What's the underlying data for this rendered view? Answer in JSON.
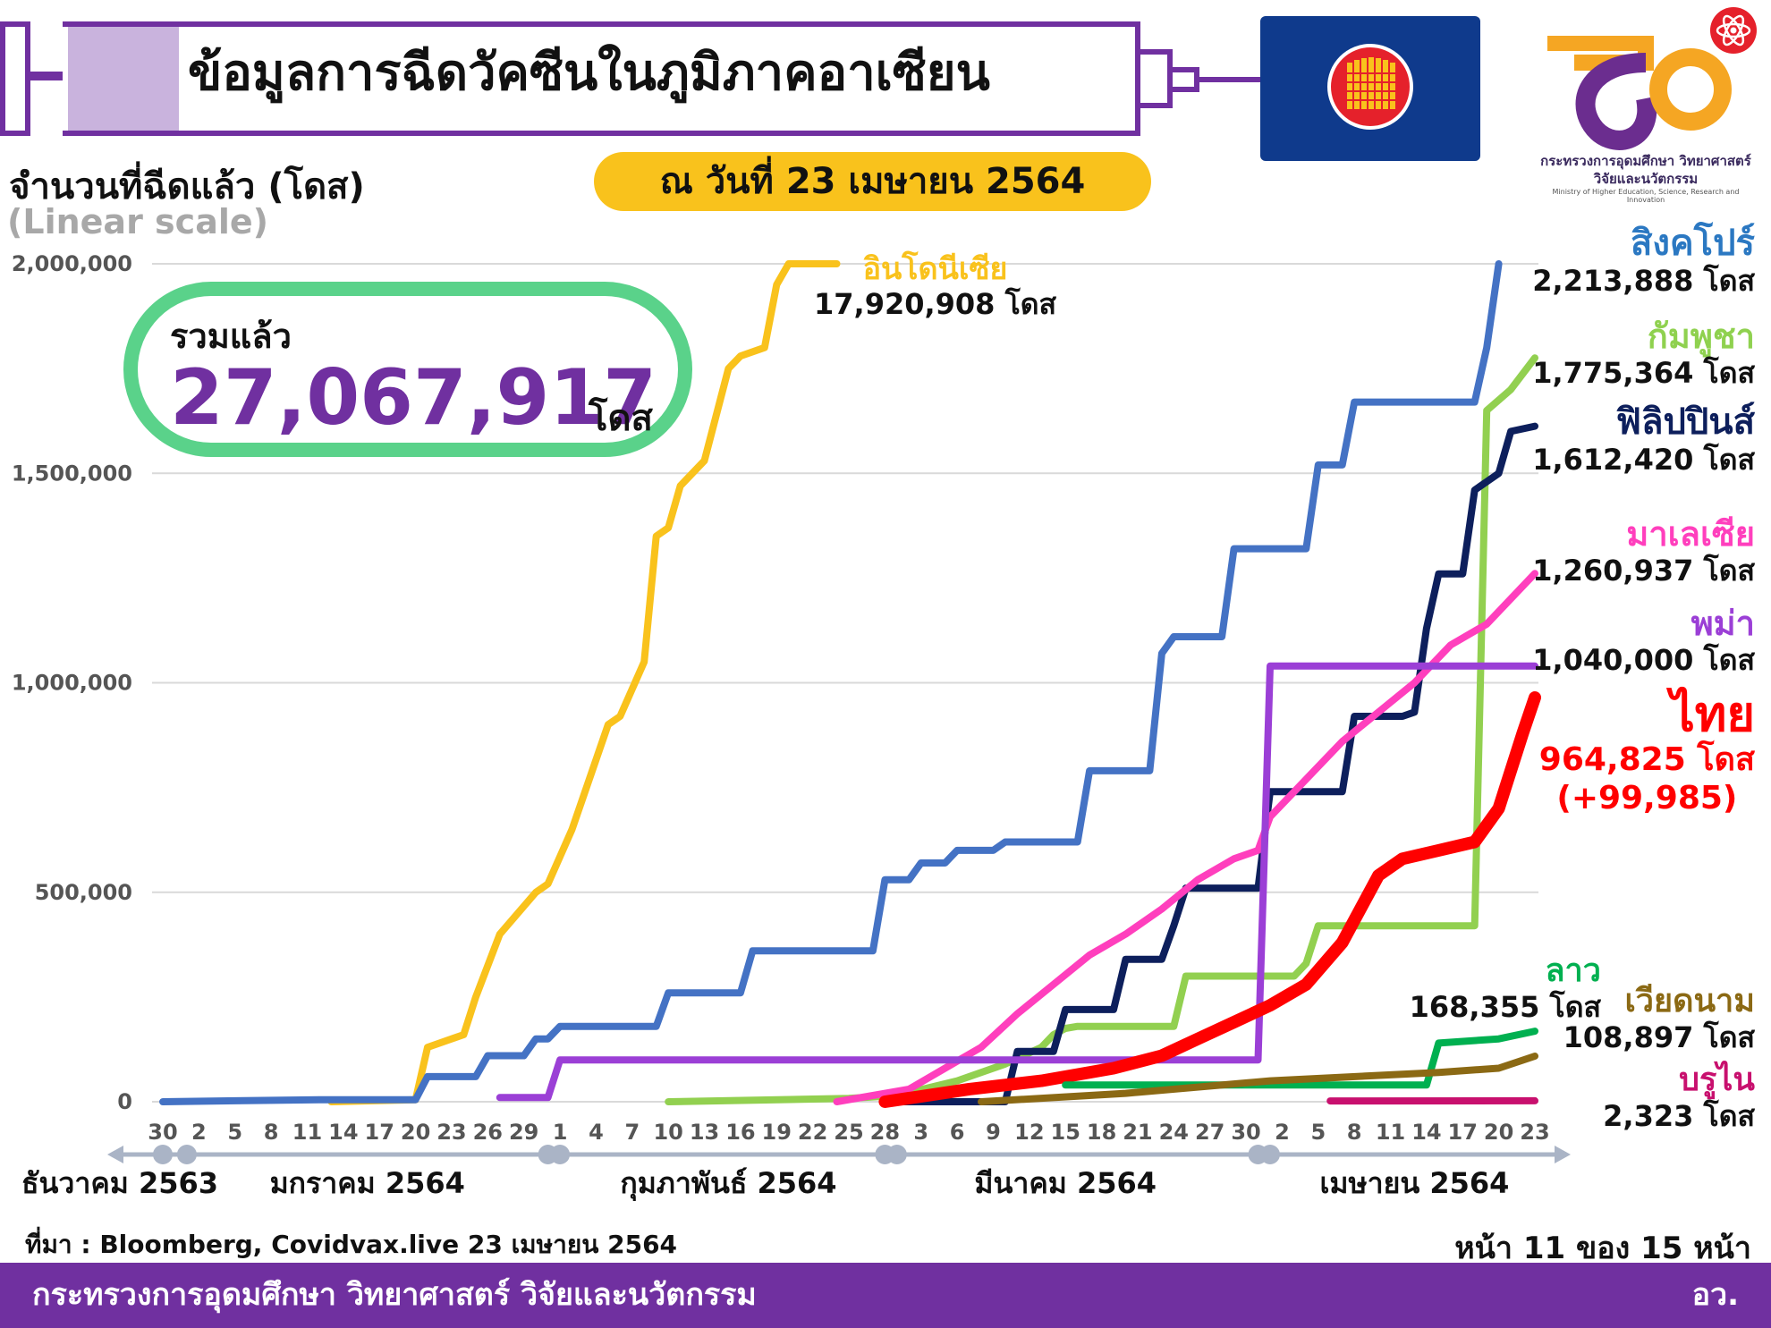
{
  "header": {
    "title": "ข้อมูลการฉีดวัคซีนในภูมิภาคอาเซียน",
    "date": "ณ วันที่ 23 เมษายน 2564"
  },
  "logo": {
    "name_th": "กระทรวงการอุดมศึกษา วิทยาศาสตร์ วิจัยและนวัตกรรม",
    "name_en": "Ministry of Higher Education, Science, Research and Innovation"
  },
  "total": {
    "label": "รวมแล้ว",
    "value": "27,067,917",
    "unit": "โดส"
  },
  "source": "ที่มา : Bloomberg, Covidvax.live 23 เมษายน 2564",
  "page": "หน้า 11 ของ 15 หน้า",
  "footer": {
    "ministry": "กระทรวงการอุดมศึกษา วิทยาศาสตร์ วิจัยและนวัตกรรม",
    "abbr": "อว."
  },
  "chart_data": {
    "type": "line",
    "ylabel": "จำนวนที่ฉีดแล้ว (โดส)",
    "yscale_note": "(Linear scale)",
    "ylim": [
      0,
      2000000
    ],
    "yticks": [
      0,
      500000,
      1000000,
      1500000,
      2000000
    ],
    "ytick_labels": [
      "0",
      "500,000",
      "1,000,000",
      "1,500,000",
      "2,000,000"
    ],
    "x_unit": "date",
    "xlim": [
      "2020-12-30",
      "2021-04-23"
    ],
    "x_ticks": [
      "2020-12-30",
      "2021-01-02",
      "2021-01-05",
      "2021-01-08",
      "2021-01-11",
      "2021-01-14",
      "2021-01-17",
      "2021-01-20",
      "2021-01-23",
      "2021-01-26",
      "2021-01-29",
      "2021-02-01",
      "2021-02-04",
      "2021-02-07",
      "2021-02-10",
      "2021-02-13",
      "2021-02-16",
      "2021-02-19",
      "2021-02-22",
      "2021-02-25",
      "2021-02-28",
      "2021-03-03",
      "2021-03-06",
      "2021-03-09",
      "2021-03-12",
      "2021-03-15",
      "2021-03-18",
      "2021-03-21",
      "2021-03-24",
      "2021-03-27",
      "2021-03-30",
      "2021-04-02",
      "2021-04-05",
      "2021-04-08",
      "2021-04-11",
      "2021-04-14",
      "2021-04-17",
      "2021-04-20",
      "2021-04-23"
    ],
    "x_tick_labels": [
      "30",
      "2",
      "5",
      "8",
      "11",
      "14",
      "17",
      "20",
      "23",
      "26",
      "29",
      "1",
      "4",
      "7",
      "10",
      "13",
      "16",
      "19",
      "22",
      "25",
      "28",
      "3",
      "6",
      "9",
      "12",
      "15",
      "18",
      "21",
      "24",
      "27",
      "30",
      "2",
      "5",
      "8",
      "11",
      "14",
      "17",
      "20",
      "23"
    ],
    "months": [
      "ธันวาคม 2563",
      "มกราคม 2564",
      "กุมภาพันธ์ 2564",
      "มีนาคม 2564",
      "เมษายน 2564"
    ],
    "grid": true,
    "series": [
      {
        "name": "อินโดนีเซีย",
        "final_label": "17,920,908 โดส",
        "color": "#f9c21c",
        "x": [
          "2021-01-13",
          "2021-01-20",
          "2021-01-21",
          "2021-01-24",
          "2021-01-25",
          "2021-01-27",
          "2021-01-30",
          "2021-01-31",
          "2021-02-02",
          "2021-02-05",
          "2021-02-06",
          "2021-02-08",
          "2021-02-09",
          "2021-02-10",
          "2021-02-11",
          "2021-02-13",
          "2021-02-15",
          "2021-02-16",
          "2021-02-18",
          "2021-02-19",
          "2021-02-20",
          "2021-02-21",
          "2021-02-23",
          "2021-02-24"
        ],
        "y": [
          0,
          5000,
          130000,
          160000,
          250000,
          400000,
          500000,
          520000,
          650000,
          900000,
          920000,
          1050000,
          1350000,
          1370000,
          1470000,
          1530000,
          1750000,
          1780000,
          1800000,
          1950000,
          2000000,
          2000000,
          2000000,
          2000000
        ]
      },
      {
        "name": "สิงคโปร์",
        "final_label": "2,213,888 โดส",
        "color": "#4472c4",
        "x": [
          "2020-12-30",
          "2021-01-12",
          "2021-01-20",
          "2021-01-21",
          "2021-01-25",
          "2021-01-26",
          "2021-01-29",
          "2021-01-30",
          "2021-01-31",
          "2021-02-01",
          "2021-02-02",
          "2021-02-09",
          "2021-02-10",
          "2021-02-16",
          "2021-02-17",
          "2021-02-27",
          "2021-02-28",
          "2021-03-02",
          "2021-03-03",
          "2021-03-05",
          "2021-03-06",
          "2021-03-09",
          "2021-03-10",
          "2021-03-16",
          "2021-03-17",
          "2021-03-21",
          "2021-03-22",
          "2021-03-23",
          "2021-03-24",
          "2021-03-28",
          "2021-03-29",
          "2021-04-04",
          "2021-04-05",
          "2021-04-07",
          "2021-04-08",
          "2021-04-18",
          "2021-04-19",
          "2021-04-20"
        ],
        "y": [
          0,
          5000,
          5000,
          60000,
          60000,
          110000,
          110000,
          150000,
          150000,
          180000,
          180000,
          180000,
          260000,
          260000,
          360000,
          360000,
          530000,
          530000,
          570000,
          570000,
          600000,
          600000,
          620000,
          620000,
          790000,
          790000,
          790000,
          1070000,
          1110000,
          1110000,
          1320000,
          1320000,
          1520000,
          1520000,
          1670000,
          1670000,
          1800000,
          2000000
        ]
      },
      {
        "name": "กัมพูชา",
        "final_label": "1,775,364 โดส",
        "color": "#92d050",
        "x": [
          "2021-02-10",
          "2021-02-25",
          "2021-03-01",
          "2021-03-06",
          "2021-03-10",
          "2021-03-13",
          "2021-03-14",
          "2021-03-15",
          "2021-03-16",
          "2021-03-24",
          "2021-03-25",
          "2021-04-03",
          "2021-04-04",
          "2021-04-05",
          "2021-04-06",
          "2021-04-17",
          "2021-04-18",
          "2021-04-19",
          "2021-04-21",
          "2021-04-23"
        ],
        "y": [
          0,
          8000,
          15000,
          50000,
          90000,
          130000,
          160000,
          175000,
          180000,
          180000,
          300000,
          300000,
          330000,
          420000,
          420000,
          420000,
          420000,
          1650000,
          1700000,
          1775364
        ]
      },
      {
        "name": "ฟิลิปปินส์",
        "final_label": "1,612,420 โดส",
        "color": "#0d1f5c",
        "x": [
          "2021-03-01",
          "2021-03-10",
          "2021-03-11",
          "2021-03-14",
          "2021-03-15",
          "2021-03-19",
          "2021-03-20",
          "2021-03-23",
          "2021-03-24",
          "2021-03-25",
          "2021-03-26",
          "2021-03-31",
          "2021-04-01",
          "2021-04-07",
          "2021-04-08",
          "2021-04-12",
          "2021-04-13",
          "2021-04-14",
          "2021-04-15",
          "2021-04-17",
          "2021-04-18",
          "2021-04-19",
          "2021-04-20",
          "2021-04-21",
          "2021-04-23"
        ],
        "y": [
          0,
          0,
          120000,
          120000,
          220000,
          220000,
          340000,
          340000,
          420000,
          510000,
          510000,
          510000,
          740000,
          740000,
          920000,
          920000,
          930000,
          1130000,
          1260000,
          1260000,
          1460000,
          1480000,
          1500000,
          1600000,
          1612420
        ]
      },
      {
        "name": "มาเลเซีย",
        "final_label": "1,260,937 โดส",
        "color": "#ff3fbd",
        "x": [
          "2021-02-24",
          "2021-03-02",
          "2021-03-05",
          "2021-03-08",
          "2021-03-11",
          "2021-03-14",
          "2021-03-17",
          "2021-03-20",
          "2021-03-23",
          "2021-03-26",
          "2021-03-29",
          "2021-03-31",
          "2021-04-01",
          "2021-04-04",
          "2021-04-07",
          "2021-04-10",
          "2021-04-13",
          "2021-04-16",
          "2021-04-19",
          "2021-04-23"
        ],
        "y": [
          0,
          30000,
          80000,
          130000,
          210000,
          280000,
          350000,
          400000,
          460000,
          530000,
          580000,
          600000,
          680000,
          770000,
          860000,
          930000,
          1000000,
          1090000,
          1140000,
          1260937
        ]
      },
      {
        "name": "พม่า",
        "final_label": "1,040,000 โดส",
        "color": "#9b3fd6",
        "x": [
          "2021-01-27",
          "2021-01-31",
          "2021-02-01",
          "2021-03-31",
          "2021-04-01",
          "2021-04-23"
        ],
        "y": [
          10000,
          10000,
          100000,
          100000,
          1040000,
          1040000
        ]
      },
      {
        "name": "ไทย",
        "final_label": "964,825 โดส",
        "extra_label": "(+99,985)",
        "color": "#ff0000",
        "x": [
          "2021-02-28",
          "2021-03-07",
          "2021-03-13",
          "2021-03-19",
          "2021-03-23",
          "2021-03-26",
          "2021-03-29",
          "2021-04-01",
          "2021-04-04",
          "2021-04-07",
          "2021-04-10",
          "2021-04-12",
          "2021-04-15",
          "2021-04-18",
          "2021-04-20",
          "2021-04-22",
          "2021-04-23"
        ],
        "y": [
          0,
          30000,
          50000,
          80000,
          110000,
          150000,
          190000,
          230000,
          280000,
          380000,
          540000,
          580000,
          600000,
          620000,
          700000,
          880000,
          964825
        ]
      },
      {
        "name": "ลาว",
        "final_label": "168,355 โดส",
        "color": "#00b050",
        "x": [
          "2021-03-15",
          "2021-03-31",
          "2021-04-14",
          "2021-04-15",
          "2021-04-20",
          "2021-04-23"
        ],
        "y": [
          40000,
          40000,
          40000,
          140000,
          150000,
          168355
        ]
      },
      {
        "name": "เวียดนาม",
        "final_label": "108,897 โดส",
        "color": "#8b6914",
        "x": [
          "2021-03-08",
          "2021-03-20",
          "2021-04-01",
          "2021-04-15",
          "2021-04-20",
          "2021-04-23"
        ],
        "y": [
          0,
          20000,
          50000,
          70000,
          80000,
          108897
        ]
      },
      {
        "name": "บรูไน",
        "final_label": "2,323 โดส",
        "color": "#c8106e",
        "x": [
          "2021-04-06",
          "2021-04-23"
        ],
        "y": [
          2000,
          2323
        ]
      }
    ]
  }
}
